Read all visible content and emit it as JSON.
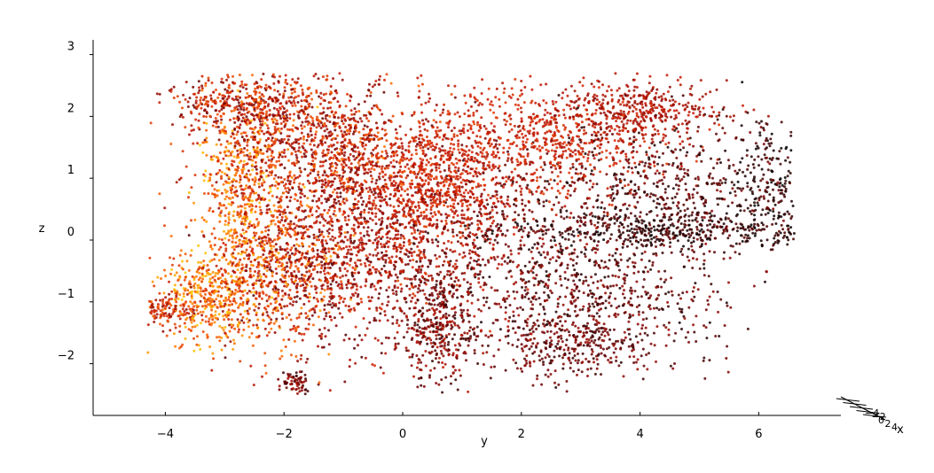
{
  "chart_data": {
    "type": "scatter",
    "projection": "3d",
    "title": "",
    "xlabel": "x",
    "ylabel": "y",
    "zlabel": "z",
    "y_ticks": [
      -4,
      -2,
      0,
      2,
      4,
      6
    ],
    "z_ticks": [
      -2,
      -1,
      0,
      1,
      2,
      3
    ],
    "x_ticks": [
      -4,
      -2,
      0,
      2,
      4
    ],
    "x_tick_labels": [
      "−4",
      "−2",
      "0",
      "2",
      "4"
    ],
    "y_tick_labels": [
      "−4",
      "−2",
      "0",
      "2",
      "4",
      "6"
    ],
    "z_tick_labels": [
      "−2",
      "−1",
      "0",
      "1",
      "2",
      "3"
    ],
    "ylim": [
      -5.2,
      7.7
    ],
    "zlim": [
      -2.9,
      3.2
    ],
    "colormap": [
      "#000000",
      "#7a0000",
      "#cc1a00",
      "#ff6600",
      "#ffcc00"
    ],
    "marker_alpha": 0.85,
    "n_points": 9000,
    "grid": false,
    "legend": "none",
    "clusters": [
      {
        "y": -2.6,
        "z": 2.2,
        "sy": 0.7,
        "sz": 0.25,
        "w": 0.05,
        "c": [
          0.2,
          0.7
        ]
      },
      {
        "y": -1.5,
        "z": 1.5,
        "sy": 0.9,
        "sz": 0.6,
        "w": 0.1,
        "c": [
          0.2,
          0.8
        ]
      },
      {
        "y": -2.7,
        "z": 0.8,
        "sy": 0.4,
        "sz": 0.7,
        "w": 0.05,
        "c": [
          0.5,
          1.0
        ]
      },
      {
        "y": -3.3,
        "z": -0.9,
        "sy": 0.5,
        "sz": 0.4,
        "w": 0.05,
        "c": [
          0.55,
          1.0
        ]
      },
      {
        "y": -4.0,
        "z": -1.15,
        "sy": 0.3,
        "sz": 0.15,
        "w": 0.015,
        "c": [
          0.3,
          0.7
        ]
      },
      {
        "y": -2.2,
        "z": -0.5,
        "sy": 0.6,
        "sz": 0.6,
        "w": 0.07,
        "c": [
          0.3,
          0.9
        ]
      },
      {
        "y": -0.3,
        "z": 0.8,
        "sy": 1.0,
        "sz": 0.8,
        "w": 0.11,
        "c": [
          0.25,
          0.65
        ]
      },
      {
        "y": 0.6,
        "z": 0.9,
        "sy": 0.6,
        "sz": 0.5,
        "w": 0.06,
        "c": [
          0.45,
          0.6
        ]
      },
      {
        "y": -0.8,
        "z": -0.5,
        "sy": 0.9,
        "sz": 0.7,
        "w": 0.09,
        "c": [
          0.15,
          0.55
        ]
      },
      {
        "y": 0.6,
        "z": -1.4,
        "sy": 0.35,
        "sz": 0.45,
        "w": 0.04,
        "c": [
          0.1,
          0.45
        ]
      },
      {
        "y": -1.8,
        "z": -2.3,
        "sy": 0.12,
        "sz": 0.1,
        "w": 0.008,
        "c": [
          0.1,
          0.4
        ]
      },
      {
        "y": 2.5,
        "z": 1.6,
        "sy": 1.0,
        "sz": 0.45,
        "w": 0.08,
        "c": [
          0.4,
          0.6
        ]
      },
      {
        "y": 4.0,
        "z": 2.1,
        "sy": 0.7,
        "sz": 0.25,
        "w": 0.04,
        "c": [
          0.3,
          0.5
        ]
      },
      {
        "y": 4.5,
        "z": 0.8,
        "sy": 1.1,
        "sz": 0.6,
        "w": 0.07,
        "c": [
          0.05,
          0.3
        ]
      },
      {
        "y": 4.2,
        "z": 0.15,
        "sy": 1.4,
        "sz": 0.15,
        "w": 0.05,
        "c": [
          0.0,
          0.2
        ]
      },
      {
        "y": 3.3,
        "z": -0.9,
        "sy": 1.0,
        "sz": 0.6,
        "w": 0.07,
        "c": [
          0.05,
          0.35
        ]
      },
      {
        "y": 2.8,
        "z": -1.7,
        "sy": 0.7,
        "sz": 0.25,
        "w": 0.03,
        "c": [
          0.1,
          0.35
        ]
      },
      {
        "y": 6.2,
        "z": 0.8,
        "sy": 0.35,
        "sz": 0.5,
        "w": 0.03,
        "c": [
          0.0,
          0.15
        ]
      },
      {
        "y": 1.5,
        "z": 0.1,
        "sy": 0.8,
        "sz": 0.8,
        "w": 0.06,
        "c": [
          0.1,
          0.45
        ]
      }
    ]
  }
}
